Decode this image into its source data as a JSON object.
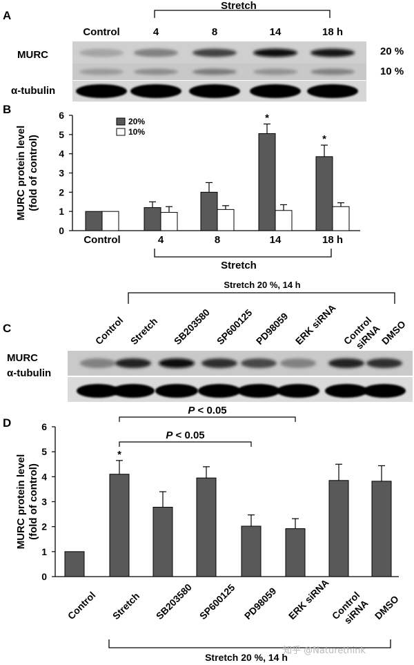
{
  "panel_a": {
    "letter": "A",
    "stretch_label": "Stretch",
    "lanes": [
      "Control",
      "4",
      "8",
      "14",
      "18 h"
    ],
    "rows": [
      {
        "label": "MURC",
        "condition": "20 %",
        "intensity": [
          0.3,
          0.45,
          0.72,
          0.95,
          0.92
        ]
      },
      {
        "label": "",
        "condition": "10 %",
        "intensity": [
          0.35,
          0.4,
          0.48,
          0.38,
          0.45
        ]
      },
      {
        "label": "α-tubulin",
        "condition": "",
        "intensity": [
          0.98,
          0.98,
          0.98,
          0.98,
          0.98
        ]
      }
    ]
  },
  "panel_c": {
    "letter": "C",
    "header": "Stretch 20 %, 14 h",
    "lanes": [
      "Control",
      "Stretch",
      "SB203580",
      "SP600125",
      "PD98059",
      "ERK siRNA",
      "Control siRNA",
      "DMSO"
    ],
    "lane_label_lines": [
      [
        "Control"
      ],
      [
        "Stretch"
      ],
      [
        "SB203580"
      ],
      [
        "SP600125"
      ],
      [
        "PD98059"
      ],
      [
        "ERK siRNA"
      ],
      [
        "Control",
        "siRNA"
      ],
      [
        "DMSO"
      ]
    ],
    "rows": [
      {
        "label": "MURC",
        "intensity": [
          0.45,
          0.85,
          0.95,
          0.8,
          0.7,
          0.45,
          0.85,
          0.8
        ]
      },
      {
        "label": "α-tubulin",
        "intensity": [
          0.98,
          0.98,
          0.98,
          0.98,
          0.98,
          0.98,
          0.98,
          0.98
        ]
      }
    ]
  },
  "chart_data": [
    {
      "panel": "B",
      "type": "bar",
      "categories": [
        "Control",
        "4",
        "8",
        "14",
        "18 h"
      ],
      "series": [
        {
          "name": "20%",
          "color": "#595959",
          "values": [
            1.0,
            1.2,
            2.0,
            5.05,
            3.85
          ],
          "errors": [
            0,
            0.3,
            0.5,
            0.5,
            0.6
          ]
        },
        {
          "name": "10%",
          "color": "#ffffff",
          "values": [
            1.0,
            0.95,
            1.1,
            1.05,
            1.25
          ],
          "errors": [
            0,
            0.3,
            0.2,
            0.3,
            0.2
          ]
        }
      ],
      "significance": [
        {
          "category": "14",
          "series": "20%",
          "mark": "*"
        },
        {
          "category": "18 h",
          "series": "20%",
          "mark": "*"
        }
      ],
      "ylabel": "MURC protein level (fold of control)",
      "ylabel_lines": [
        "MURC protein level",
        "(fold of control)"
      ],
      "ylim": [
        0,
        6
      ],
      "yticks": [
        0,
        1,
        2,
        3,
        4,
        5,
        6
      ],
      "bracket_label": "Stretch",
      "legend_position": "top-left"
    },
    {
      "panel": "D",
      "type": "bar",
      "categories": [
        "Control",
        "Stretch",
        "SB203580",
        "SP600125",
        "PD98059",
        "ERK siRNA",
        "Control siRNA",
        "DMSO"
      ],
      "category_label_lines": [
        [
          "Control"
        ],
        [
          "Stretch"
        ],
        [
          "SB203580"
        ],
        [
          "SP600125"
        ],
        [
          "PD98059"
        ],
        [
          "ERK siRNA"
        ],
        [
          "Control",
          "siRNA"
        ],
        [
          "DMSO"
        ]
      ],
      "series": [
        {
          "name": "MURC",
          "color": "#595959",
          "values": [
            1.0,
            4.1,
            2.78,
            3.95,
            2.02,
            1.92,
            3.85,
            3.82
          ],
          "errors": [
            0,
            0.55,
            0.62,
            0.45,
            0.45,
            0.4,
            0.65,
            0.62
          ]
        }
      ],
      "significance": [
        {
          "category": "Stretch",
          "mark": "*"
        }
      ],
      "comparisons": [
        {
          "from": "Stretch",
          "to": "ERK siRNA",
          "label_italic": "P",
          "label_rest": " < 0.05"
        },
        {
          "from": "Stretch",
          "to": "PD98059",
          "label_italic": "P",
          "label_rest": " < 0.05"
        }
      ],
      "ylabel": "MURC protein level (fold of control)",
      "ylabel_lines": [
        "MURC protein level",
        "(fold of control)"
      ],
      "ylim": [
        0,
        6
      ],
      "yticks": [
        0,
        1,
        2,
        3,
        4,
        5,
        6
      ],
      "bracket_label": "Stretch 20 %, 14 h"
    }
  ],
  "watermark": "知乎 @Naturethink"
}
